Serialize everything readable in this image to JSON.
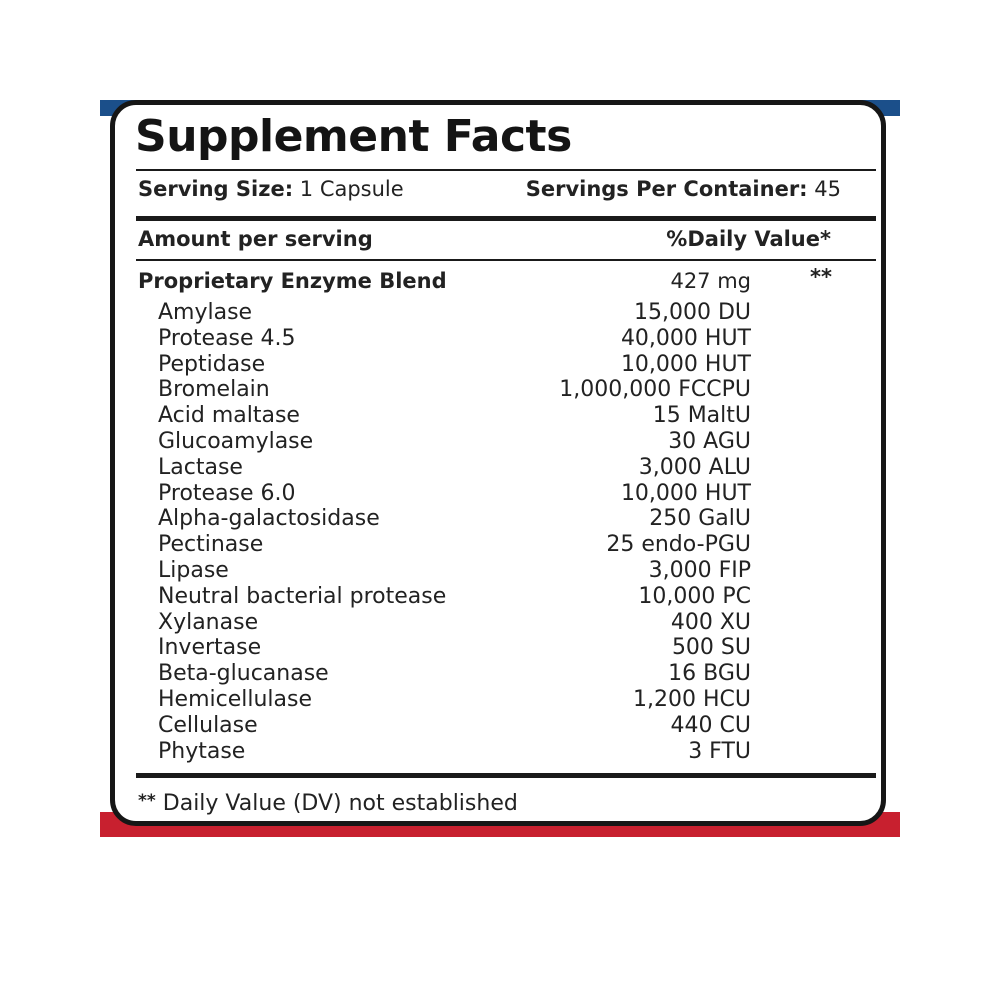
{
  "label": {
    "title": "Supplement Facts",
    "serving_size_label": "Serving Size:",
    "serving_size_value": "1 Capsule",
    "servings_per_container_label": "Servings Per Container:",
    "servings_per_container_value": "45",
    "amount_per_serving_label": "Amount per serving",
    "daily_value_label": "%Daily Value*",
    "blend": {
      "name": "Proprietary Enzyme Blend",
      "amount": "427 mg",
      "dv": "**"
    },
    "ingredients": [
      {
        "name": "Amylase",
        "amount": "15,000 DU"
      },
      {
        "name": "Protease 4.5",
        "amount": "40,000 HUT"
      },
      {
        "name": "Peptidase",
        "amount": "10,000 HUT"
      },
      {
        "name": "Bromelain",
        "amount": "1,000,000 FCCPU"
      },
      {
        "name": "Acid maltase",
        "amount": "15 MaltU"
      },
      {
        "name": "Glucoamylase",
        "amount": "30 AGU"
      },
      {
        "name": "Lactase",
        "amount": "3,000 ALU"
      },
      {
        "name": "Protease 6.0",
        "amount": "10,000 HUT"
      },
      {
        "name": "Alpha-galactosidase",
        "amount": "250 GalU"
      },
      {
        "name": "Pectinase",
        "amount": "25 endo-PGU"
      },
      {
        "name": "Lipase",
        "amount": "3,000 FIP"
      },
      {
        "name": "Neutral bacterial protease",
        "amount": "10,000 PC"
      },
      {
        "name": "Xylanase",
        "amount": "400 XU"
      },
      {
        "name": "Invertase",
        "amount": "500 SU"
      },
      {
        "name": "Beta-glucanase",
        "amount": "16 BGU"
      },
      {
        "name": "Hemicellulase",
        "amount": "1,200 HCU"
      },
      {
        "name": "Cellulase",
        "amount": "440 CU"
      },
      {
        "name": "Phytase",
        "amount": "3 FTU"
      }
    ],
    "footnote_marker": "**",
    "footnote_text": " Daily Value (DV) not established"
  },
  "colors": {
    "top_band": "#1b4f8a",
    "bottom_band": "#c8202f",
    "panel_border": "#161616",
    "text": "#222222"
  }
}
